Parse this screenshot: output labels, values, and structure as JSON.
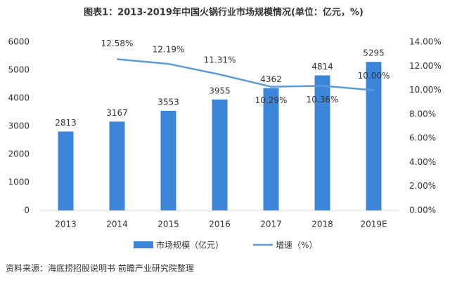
{
  "chart_data": {
    "type": "bar-line",
    "title": "图表1：2013-2019年中国火锅行业市场规模情况(单位：亿元，%)",
    "categories": [
      "2013",
      "2014",
      "2015",
      "2016",
      "2017",
      "2018",
      "2019E"
    ],
    "series": [
      {
        "name": "市场规模（亿元）",
        "type": "bar",
        "color": "#3d85d8",
        "values": [
          2813,
          3167,
          3553,
          3955,
          4362,
          4814,
          5295
        ]
      },
      {
        "name": "增速（%）",
        "type": "line",
        "axis": "y2",
        "color": "#5b9bd5",
        "values": [
          null,
          12.58,
          12.19,
          11.31,
          10.29,
          10.36,
          10.0
        ],
        "value_labels": [
          null,
          "12.58%",
          "12.19%",
          "11.31%",
          "10.29%",
          "10.36%",
          "10.00%"
        ]
      }
    ],
    "ylim": [
      0,
      6000
    ],
    "yticks": [
      0,
      1000,
      2000,
      3000,
      4000,
      5000,
      6000
    ],
    "y2lim": [
      0,
      14
    ],
    "y2ticks": [
      {
        "value": 0,
        "label": "0.00%"
      },
      {
        "value": 2,
        "label": "2.00%"
      },
      {
        "value": 4,
        "label": "4.00%"
      },
      {
        "value": 6,
        "label": "6.00%"
      },
      {
        "value": 8,
        "label": "8.00%"
      },
      {
        "value": 10,
        "label": "10.00%"
      },
      {
        "value": 12,
        "label": "12.00%"
      },
      {
        "value": 14,
        "label": "14.00%"
      }
    ],
    "legend": "bottom",
    "source": "资料来源：海底捞招股说明书 前瞻产业研究院整理"
  }
}
